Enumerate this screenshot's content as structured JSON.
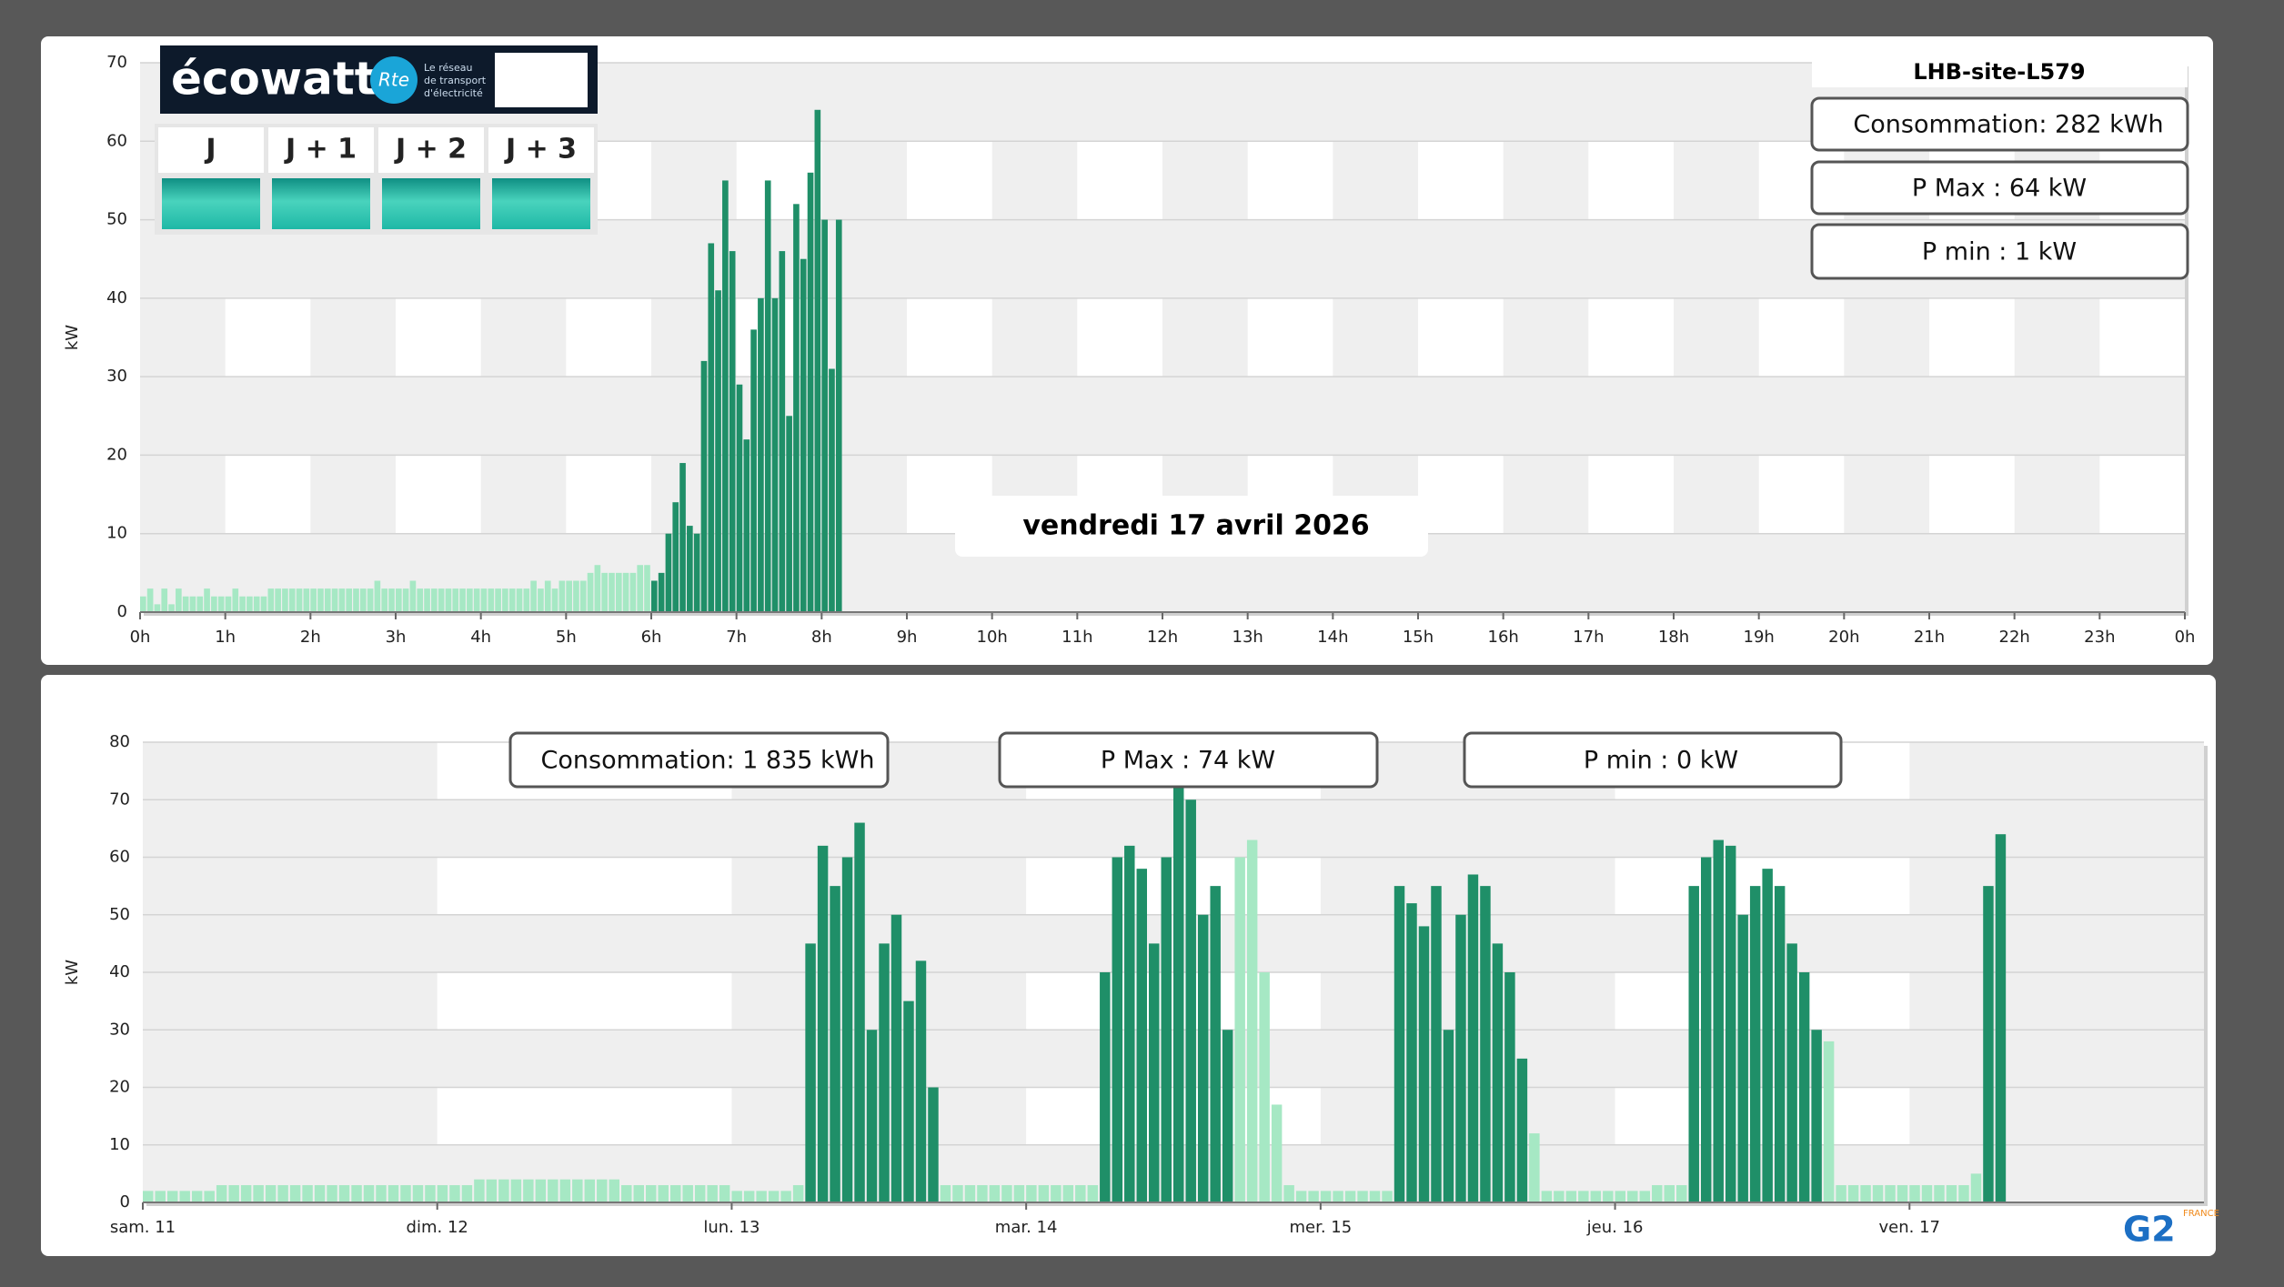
{
  "ecowatt": {
    "logo": "écowatt",
    "rte": "Rte",
    "tagline": [
      "Le réseau",
      "de transport",
      "d'électricité"
    ],
    "days": [
      "J",
      "J + 1",
      "J + 2",
      "J + 3"
    ]
  },
  "brand": {
    "name": "G2",
    "sub": "FRANCE"
  },
  "chart_data": [
    {
      "type": "bar",
      "ylabel": "kW",
      "site": "LHB-site-L579",
      "date": "vendredi 17 avril 2026",
      "stats": [
        "Consommation: 282 kWh",
        "P Max :  64 kW",
        "P min : 1 kW"
      ],
      "xlim": [
        0,
        1440
      ],
      "xticks": [
        {
          "value": 0,
          "label": "0h"
        },
        {
          "value": 60,
          "label": "1h"
        },
        {
          "value": 120,
          "label": "2h"
        },
        {
          "value": 180,
          "label": "3h"
        },
        {
          "value": 240,
          "label": "4h"
        },
        {
          "value": 300,
          "label": "5h"
        },
        {
          "value": 360,
          "label": "6h"
        },
        {
          "value": 420,
          "label": "7h"
        },
        {
          "value": 480,
          "label": "8h"
        },
        {
          "value": 540,
          "label": "9h"
        },
        {
          "value": 600,
          "label": "10h"
        },
        {
          "value": 660,
          "label": "11h"
        },
        {
          "value": 720,
          "label": "12h"
        },
        {
          "value": 780,
          "label": "13h"
        },
        {
          "value": 840,
          "label": "14h"
        },
        {
          "value": 900,
          "label": "15h"
        },
        {
          "value": 960,
          "label": "16h"
        },
        {
          "value": 1020,
          "label": "17h"
        },
        {
          "value": 1080,
          "label": "18h"
        },
        {
          "value": 1140,
          "label": "19h"
        },
        {
          "value": 1200,
          "label": "20h"
        },
        {
          "value": 1260,
          "label": "21h"
        },
        {
          "value": 1320,
          "label": "22h"
        },
        {
          "value": 1380,
          "label": "23h"
        },
        {
          "value": 1440,
          "label": "0h"
        }
      ],
      "ylim": [
        0,
        70
      ],
      "yticks": [
        0,
        10,
        20,
        30,
        40,
        50,
        60,
        70
      ],
      "grid": true,
      "series": [
        {
          "color": "#a6e8c4",
          "x": [
            0,
            5,
            10,
            15,
            20,
            25,
            30,
            35,
            40,
            45,
            50,
            55,
            60,
            65,
            70,
            75,
            80,
            85,
            90,
            95,
            100,
            105,
            110,
            115,
            120,
            125,
            130,
            135,
            140,
            145,
            150,
            155,
            160,
            165,
            170,
            175,
            180,
            185,
            190,
            195,
            200,
            205,
            210,
            215,
            220,
            225,
            230,
            235,
            240,
            245,
            250,
            255,
            260,
            265,
            270,
            275,
            280,
            285,
            290,
            295,
            300,
            305,
            310,
            315,
            320,
            325,
            330,
            335,
            340,
            345,
            350,
            355
          ],
          "values": [
            2,
            3,
            1,
            3,
            1,
            3,
            2,
            2,
            2,
            3,
            2,
            2,
            2,
            3,
            2,
            2,
            2,
            2,
            3,
            3,
            3,
            3,
            3,
            3,
            3,
            3,
            3,
            3,
            3,
            3,
            3,
            3,
            3,
            4,
            3,
            3,
            3,
            3,
            4,
            3,
            3,
            3,
            3,
            3,
            3,
            3,
            3,
            3,
            3,
            3,
            3,
            3,
            3,
            3,
            3,
            4,
            3,
            4,
            3,
            4,
            4,
            4,
            4,
            5,
            6,
            5,
            5,
            5,
            5,
            5,
            6,
            6
          ]
        },
        {
          "color": "#1f8f68",
          "x": [
            360,
            365,
            370,
            375,
            380,
            385,
            390,
            395,
            400,
            405,
            410,
            415,
            420,
            425,
            430,
            435,
            440,
            445,
            450,
            455,
            460,
            465,
            470,
            475,
            480,
            485,
            490
          ],
          "values": [
            4,
            5,
            10,
            14,
            19,
            11,
            10,
            32,
            47,
            41,
            55,
            46,
            29,
            22,
            36,
            40,
            55,
            40,
            46,
            25,
            52,
            45,
            56,
            64,
            50,
            31,
            50
          ]
        }
      ]
    },
    {
      "type": "bar",
      "ylabel": "kW",
      "stats": [
        "Consommation: 1 835 kWh",
        "P Max :  74 kW",
        "P min : 0 kW"
      ],
      "xlim": [
        0,
        168
      ],
      "xticks": [
        {
          "value": 0,
          "label": "sam. 11"
        },
        {
          "value": 24,
          "label": "dim. 12"
        },
        {
          "value": 48,
          "label": "lun. 13"
        },
        {
          "value": 72,
          "label": "mar. 14"
        },
        {
          "value": 96,
          "label": "mer. 15"
        },
        {
          "value": 120,
          "label": "jeu. 16"
        },
        {
          "value": 144,
          "label": "ven. 17"
        }
      ],
      "ylim": [
        0,
        80
      ],
      "yticks": [
        0,
        10,
        20,
        30,
        40,
        50,
        60,
        70,
        80
      ],
      "grid": true,
      "series": [
        {
          "color": "#a6e8c4",
          "x": [
            0,
            1,
            2,
            3,
            4,
            5,
            6,
            7,
            8,
            9,
            10,
            11,
            12,
            13,
            14,
            15,
            16,
            17,
            18,
            19,
            20,
            21,
            22,
            23,
            24,
            25,
            26,
            27,
            28,
            29,
            30,
            31,
            32,
            33,
            34,
            35,
            36,
            37,
            38,
            39,
            40,
            41,
            42,
            43,
            44,
            45,
            46,
            47,
            48,
            49,
            50,
            51,
            52,
            53,
            65,
            66,
            67,
            68,
            69,
            70,
            71,
            72,
            73,
            74,
            75,
            76,
            77,
            89,
            90,
            91,
            92,
            93,
            94,
            95,
            96,
            97,
            98,
            99,
            100,
            101,
            113,
            114,
            115,
            116,
            117,
            118,
            119,
            120,
            121,
            122,
            123,
            124,
            125,
            137,
            138,
            139,
            140,
            141,
            142,
            143,
            144,
            145,
            146,
            147,
            148,
            149
          ],
          "values": [
            2,
            2,
            2,
            2,
            2,
            2,
            3,
            3,
            3,
            3,
            3,
            3,
            3,
            3,
            3,
            3,
            3,
            3,
            3,
            3,
            3,
            3,
            3,
            3,
            3,
            3,
            3,
            4,
            4,
            4,
            4,
            4,
            4,
            4,
            4,
            4,
            4,
            4,
            4,
            3,
            3,
            3,
            3,
            3,
            3,
            3,
            3,
            3,
            2,
            2,
            2,
            2,
            2,
            3,
            3,
            3,
            3,
            3,
            3,
            3,
            3,
            3,
            3,
            3,
            3,
            3,
            3,
            60,
            63,
            40,
            17,
            3,
            2,
            2,
            2,
            2,
            2,
            2,
            2,
            2,
            12,
            2,
            2,
            2,
            2,
            2,
            2,
            2,
            2,
            2,
            3,
            3,
            3,
            28,
            3,
            3,
            3,
            3,
            3,
            3,
            3,
            3,
            3,
            3,
            3,
            5
          ]
        },
        {
          "color": "#1f8f68",
          "x": [
            54,
            55,
            56,
            57,
            58,
            59,
            60,
            61,
            62,
            63,
            64,
            78,
            79,
            80,
            81,
            82,
            83,
            84,
            85,
            86,
            87,
            88,
            102,
            103,
            104,
            105,
            106,
            107,
            108,
            109,
            110,
            111,
            112,
            126,
            127,
            128,
            129,
            130,
            131,
            132,
            133,
            134,
            135,
            136,
            150,
            151
          ],
          "values": [
            45,
            62,
            55,
            60,
            66,
            30,
            45,
            50,
            35,
            42,
            20,
            40,
            60,
            62,
            58,
            45,
            60,
            74,
            70,
            50,
            55,
            30,
            55,
            52,
            48,
            55,
            30,
            50,
            57,
            55,
            45,
            40,
            25,
            55,
            60,
            63,
            62,
            50,
            55,
            58,
            55,
            45,
            40,
            30,
            55,
            64
          ]
        }
      ]
    }
  ]
}
